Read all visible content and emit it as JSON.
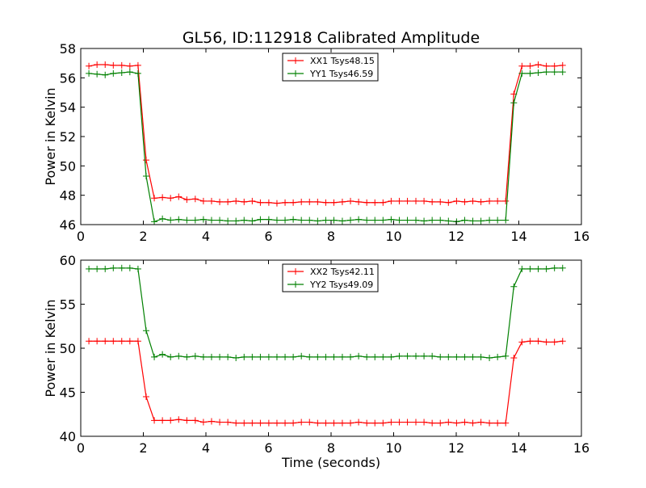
{
  "title": "GL56, ID:112918 Calibrated Amplitude",
  "colors": {
    "red": "#ff0000",
    "green": "#008000",
    "axes": "#000000",
    "background": "#ffffff"
  },
  "chart_data": [
    {
      "type": "line",
      "title": "GL56, ID:112918 Calibrated Amplitude",
      "xlabel": "",
      "ylabel": "Power in Kelvin",
      "xlim": [
        0,
        16
      ],
      "ylim": [
        46,
        58
      ],
      "xticks": [
        0,
        2,
        4,
        6,
        8,
        10,
        12,
        14,
        16
      ],
      "yticks": [
        46,
        48,
        50,
        52,
        54,
        56,
        58
      ],
      "grid": false,
      "legend_position": "top-center",
      "marker": "+",
      "x": [
        0.26,
        0.52,
        0.78,
        1.04,
        1.31,
        1.57,
        1.83,
        2.09,
        2.35,
        2.61,
        2.87,
        3.13,
        3.39,
        3.66,
        3.92,
        4.18,
        4.44,
        4.7,
        4.96,
        5.22,
        5.48,
        5.74,
        6.01,
        6.27,
        6.53,
        6.79,
        7.05,
        7.31,
        7.57,
        7.83,
        8.09,
        8.36,
        8.62,
        8.88,
        9.14,
        9.4,
        9.66,
        9.92,
        10.18,
        10.44,
        10.71,
        10.97,
        11.23,
        11.49,
        11.75,
        12.01,
        12.27,
        12.53,
        12.79,
        13.06,
        13.32,
        13.58,
        13.84,
        14.1,
        14.36,
        14.62,
        14.88,
        15.14,
        15.4
      ],
      "series": [
        {
          "name": "XX1 Tsys48.15",
          "color": "#ff0000",
          "values": [
            56.8,
            56.9,
            56.9,
            56.85,
            56.85,
            56.8,
            56.85,
            50.4,
            47.8,
            47.85,
            47.8,
            47.9,
            47.7,
            47.75,
            47.6,
            47.6,
            47.55,
            47.55,
            47.6,
            47.55,
            47.6,
            47.5,
            47.5,
            47.45,
            47.5,
            47.5,
            47.55,
            47.55,
            47.55,
            47.5,
            47.5,
            47.55,
            47.6,
            47.55,
            47.5,
            47.5,
            47.5,
            47.6,
            47.6,
            47.6,
            47.6,
            47.6,
            47.55,
            47.55,
            47.5,
            47.6,
            47.55,
            47.6,
            47.55,
            47.6,
            47.6,
            47.6,
            54.9,
            56.8,
            56.8,
            56.9,
            56.8,
            56.8,
            56.85
          ]
        },
        {
          "name": "YY1 Tsys46.59",
          "color": "#008000",
          "values": [
            56.3,
            56.25,
            56.2,
            56.3,
            56.35,
            56.4,
            56.3,
            49.3,
            46.2,
            46.4,
            46.3,
            46.35,
            46.3,
            46.3,
            46.35,
            46.3,
            46.3,
            46.25,
            46.25,
            46.3,
            46.25,
            46.35,
            46.35,
            46.3,
            46.3,
            46.35,
            46.3,
            46.3,
            46.25,
            46.3,
            46.3,
            46.25,
            46.3,
            46.35,
            46.3,
            46.3,
            46.3,
            46.35,
            46.3,
            46.3,
            46.3,
            46.25,
            46.3,
            46.3,
            46.25,
            46.2,
            46.3,
            46.25,
            46.25,
            46.3,
            46.3,
            46.3,
            54.3,
            56.3,
            56.3,
            56.35,
            56.4,
            56.4,
            56.4
          ]
        }
      ]
    },
    {
      "type": "line",
      "title": "",
      "xlabel": "Time (seconds)",
      "ylabel": "Power in Kelvin",
      "xlim": [
        0,
        16
      ],
      "ylim": [
        40,
        60
      ],
      "xticks": [
        0,
        2,
        4,
        6,
        8,
        10,
        12,
        14,
        16
      ],
      "yticks": [
        40,
        45,
        50,
        55,
        60
      ],
      "grid": false,
      "legend_position": "top-center",
      "marker": "+",
      "x": [
        0.26,
        0.52,
        0.78,
        1.04,
        1.31,
        1.57,
        1.83,
        2.09,
        2.35,
        2.61,
        2.87,
        3.13,
        3.39,
        3.66,
        3.92,
        4.18,
        4.44,
        4.7,
        4.96,
        5.22,
        5.48,
        5.74,
        6.01,
        6.27,
        6.53,
        6.79,
        7.05,
        7.31,
        7.57,
        7.83,
        8.09,
        8.36,
        8.62,
        8.88,
        9.14,
        9.4,
        9.66,
        9.92,
        10.18,
        10.44,
        10.71,
        10.97,
        11.23,
        11.49,
        11.75,
        12.01,
        12.27,
        12.53,
        12.79,
        13.06,
        13.32,
        13.58,
        13.84,
        14.1,
        14.36,
        14.62,
        14.88,
        15.14,
        15.4
      ],
      "series": [
        {
          "name": "XX2 Tsys42.11",
          "color": "#ff0000",
          "values": [
            50.8,
            50.8,
            50.8,
            50.8,
            50.8,
            50.8,
            50.8,
            44.5,
            41.8,
            41.8,
            41.8,
            41.9,
            41.8,
            41.8,
            41.6,
            41.7,
            41.6,
            41.6,
            41.5,
            41.5,
            41.5,
            41.5,
            41.5,
            41.5,
            41.5,
            41.5,
            41.6,
            41.6,
            41.5,
            41.5,
            41.5,
            41.5,
            41.5,
            41.6,
            41.5,
            41.5,
            41.5,
            41.6,
            41.6,
            41.6,
            41.6,
            41.6,
            41.5,
            41.5,
            41.6,
            41.5,
            41.6,
            41.5,
            41.6,
            41.5,
            41.5,
            41.5,
            48.9,
            50.7,
            50.8,
            50.8,
            50.7,
            50.7,
            50.8
          ]
        },
        {
          "name": "YY2 Tsys49.09",
          "color": "#008000",
          "values": [
            59.0,
            59.0,
            59.0,
            59.1,
            59.1,
            59.1,
            59.0,
            52.0,
            49.0,
            49.3,
            49.0,
            49.1,
            49.0,
            49.1,
            49.0,
            49.0,
            49.0,
            49.0,
            48.9,
            49.0,
            49.0,
            49.0,
            49.0,
            49.0,
            49.0,
            49.0,
            49.1,
            49.0,
            49.0,
            49.0,
            49.0,
            49.0,
            49.0,
            49.1,
            49.0,
            49.0,
            49.0,
            49.0,
            49.1,
            49.1,
            49.1,
            49.1,
            49.1,
            49.0,
            49.0,
            49.0,
            49.0,
            49.0,
            49.0,
            48.9,
            49.0,
            49.1,
            57.0,
            59.0,
            59.0,
            59.0,
            59.0,
            59.1,
            59.1
          ]
        }
      ]
    }
  ]
}
